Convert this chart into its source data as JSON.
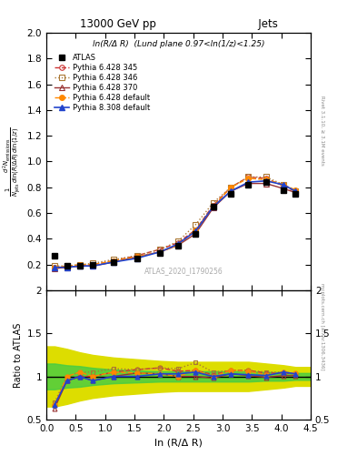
{
  "title_top": "13000 GeV pp",
  "title_right": "Jets",
  "annotation": "ln(R/Δ R)  (Lund plane 0.97<ln(1/z)<1.25)",
  "watermark": "ATLAS_2020_I1790256",
  "right_label": "Rivet 3.1.10, ≥ 3.1M events",
  "right_label2": "mcplots.cern.ch [arXiv:1306.3436]",
  "ylabel_main": "$\\frac{1}{N_{\\mathrm{jets}}}\\frac{d^2 N_{\\mathrm{emissions}}}{d\\ln(R/\\Delta R)\\,d\\ln(1/z)}$",
  "ylabel_ratio": "Ratio to ATLAS",
  "xlabel": "ln (R/Δ R)",
  "xlim": [
    0,
    4.5
  ],
  "ylim_main": [
    0,
    2.0
  ],
  "ylim_ratio": [
    0.5,
    2.0
  ],
  "yticks_main": [
    0.2,
    0.4,
    0.6,
    0.8,
    1.0,
    1.2,
    1.4,
    1.6,
    1.8,
    2.0
  ],
  "yticks_ratio": [
    0.5,
    1.0,
    1.5,
    2.0
  ],
  "x_atlas": [
    0.14,
    0.35,
    0.57,
    0.79,
    1.14,
    1.54,
    1.94,
    2.24,
    2.54,
    2.84,
    3.14,
    3.44,
    3.74,
    4.04,
    4.24
  ],
  "y_atlas": [
    0.27,
    0.19,
    0.19,
    0.2,
    0.22,
    0.25,
    0.29,
    0.35,
    0.44,
    0.65,
    0.75,
    0.82,
    0.84,
    0.78,
    0.75
  ],
  "x_py6_345": [
    0.14,
    0.35,
    0.57,
    0.79,
    1.14,
    1.54,
    1.94,
    2.24,
    2.54,
    2.84,
    3.14,
    3.44,
    3.74,
    4.04,
    4.24
  ],
  "y_py6_345": [
    0.18,
    0.18,
    0.19,
    0.2,
    0.23,
    0.27,
    0.32,
    0.37,
    0.47,
    0.66,
    0.8,
    0.88,
    0.87,
    0.81,
    0.77
  ],
  "x_py6_346": [
    0.14,
    0.35,
    0.57,
    0.79,
    1.14,
    1.54,
    1.94,
    2.24,
    2.54,
    2.84,
    3.14,
    3.44,
    3.74,
    4.04,
    4.24
  ],
  "y_py6_346": [
    0.19,
    0.19,
    0.2,
    0.21,
    0.24,
    0.27,
    0.32,
    0.38,
    0.51,
    0.68,
    0.8,
    0.88,
    0.88,
    0.82,
    0.77
  ],
  "x_py6_370": [
    0.14,
    0.35,
    0.57,
    0.79,
    1.14,
    1.54,
    1.94,
    2.24,
    2.54,
    2.84,
    3.14,
    3.44,
    3.74,
    4.04,
    4.24
  ],
  "y_py6_370": [
    0.17,
    0.18,
    0.19,
    0.19,
    0.22,
    0.26,
    0.3,
    0.35,
    0.44,
    0.64,
    0.77,
    0.83,
    0.83,
    0.79,
    0.76
  ],
  "x_py6_def": [
    0.14,
    0.35,
    0.57,
    0.79,
    1.14,
    1.54,
    1.94,
    2.24,
    2.54,
    2.84,
    3.14,
    3.44,
    3.74,
    4.04,
    4.24
  ],
  "y_py6_def": [
    0.18,
    0.19,
    0.2,
    0.2,
    0.23,
    0.26,
    0.3,
    0.35,
    0.47,
    0.65,
    0.8,
    0.87,
    0.86,
    0.82,
    0.78
  ],
  "x_py8_def": [
    0.14,
    0.35,
    0.57,
    0.79,
    1.14,
    1.54,
    1.94,
    2.24,
    2.54,
    2.84,
    3.14,
    3.44,
    3.74,
    4.04,
    4.24
  ],
  "y_py8_def": [
    0.18,
    0.18,
    0.19,
    0.19,
    0.22,
    0.25,
    0.3,
    0.36,
    0.46,
    0.65,
    0.77,
    0.84,
    0.85,
    0.82,
    0.77
  ],
  "ratio_py6_345": [
    0.67,
    0.95,
    1.0,
    1.0,
    1.05,
    1.08,
    1.1,
    1.06,
    1.07,
    1.02,
    1.07,
    1.07,
    1.04,
    1.04,
    1.03
  ],
  "ratio_py6_346": [
    0.7,
    1.0,
    1.05,
    1.05,
    1.09,
    1.08,
    1.1,
    1.09,
    1.16,
    1.05,
    1.07,
    1.07,
    1.05,
    1.05,
    1.03
  ],
  "ratio_py6_370": [
    0.63,
    0.95,
    1.0,
    0.95,
    1.0,
    1.04,
    1.03,
    1.0,
    1.0,
    0.98,
    1.03,
    1.01,
    0.99,
    1.01,
    1.01
  ],
  "ratio_py6_def": [
    0.67,
    1.0,
    1.05,
    1.0,
    1.05,
    1.04,
    1.03,
    1.0,
    1.07,
    1.0,
    1.07,
    1.06,
    1.02,
    1.05,
    1.04
  ],
  "ratio_py8_def": [
    0.67,
    0.95,
    1.0,
    0.95,
    1.0,
    1.0,
    1.03,
    1.03,
    1.05,
    1.0,
    1.03,
    1.02,
    1.01,
    1.05,
    1.03
  ],
  "band_x": [
    0.0,
    0.14,
    0.35,
    0.57,
    0.79,
    1.14,
    1.54,
    1.94,
    2.24,
    2.54,
    2.84,
    3.14,
    3.44,
    3.74,
    4.04,
    4.24,
    4.5
  ],
  "band_green_lo": [
    0.85,
    0.85,
    0.87,
    0.88,
    0.9,
    0.92,
    0.93,
    0.94,
    0.94,
    0.94,
    0.94,
    0.94,
    0.94,
    0.95,
    0.95,
    0.96,
    0.96
  ],
  "band_green_hi": [
    1.15,
    1.15,
    1.13,
    1.12,
    1.1,
    1.08,
    1.07,
    1.06,
    1.06,
    1.06,
    1.06,
    1.06,
    1.06,
    1.05,
    1.05,
    1.04,
    1.04
  ],
  "band_yellow_lo": [
    0.65,
    0.65,
    0.68,
    0.72,
    0.75,
    0.78,
    0.8,
    0.82,
    0.83,
    0.83,
    0.83,
    0.83,
    0.83,
    0.85,
    0.87,
    0.89,
    0.89
  ],
  "band_yellow_hi": [
    1.35,
    1.35,
    1.32,
    1.28,
    1.25,
    1.22,
    1.2,
    1.18,
    1.17,
    1.17,
    1.17,
    1.17,
    1.17,
    1.15,
    1.13,
    1.11,
    1.11
  ],
  "color_py6_345": "#cc3333",
  "color_py6_346": "#aa7733",
  "color_py6_370": "#cc3333",
  "color_py6_def": "#ff8800",
  "color_py8_def": "#2244cc",
  "color_atlas": "#000000",
  "color_green_band": "#44cc44",
  "color_yellow_band": "#dddd00"
}
